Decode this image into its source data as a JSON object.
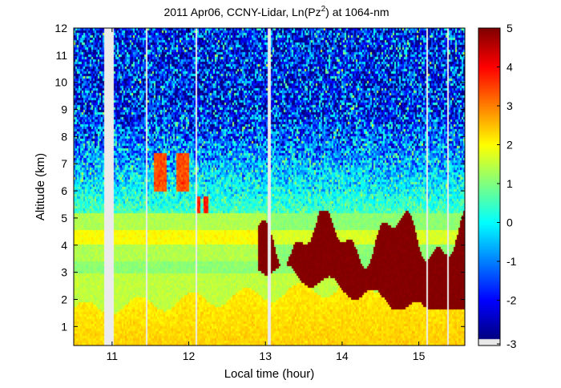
{
  "chart_data": {
    "type": "heatmap",
    "title_parts": {
      "prefix": "2011 Apr06, CCNY-Lidar, Ln(Pz",
      "superscript": "2",
      "suffix": ") at 1064-nm"
    },
    "xlabel": "Local time (hour)",
    "ylabel": "Altitude (km)",
    "xlim": [
      10.5,
      15.6
    ],
    "ylim": [
      0.3,
      12
    ],
    "x_ticks": [
      11,
      12,
      13,
      14,
      15
    ],
    "y_ticks": [
      1,
      2,
      3,
      4,
      5,
      6,
      7,
      8,
      9,
      10,
      11,
      12
    ],
    "colorbar": {
      "colormap": "jet",
      "range": [
        -3,
        5
      ],
      "ticks": [
        -3,
        -2,
        -1,
        0,
        1,
        2,
        3,
        4,
        5
      ],
      "no_data_color": "#e8e8e8"
    },
    "no_data_times": [
      10.95,
      11.45,
      12.1,
      13.05,
      15.1,
      15.38
    ],
    "no_data_block": [
      10.9,
      11.02
    ],
    "field_description": {
      "boundary_layer": {
        "top_km_start": 1.6,
        "top_km_end": 2.8,
        "value": 2.4
      },
      "aerosol_layer_km": [
        3.5,
        5.2
      ],
      "cloud_ice_patches": [
        {
          "t": [
            11.55,
            12.0
          ],
          "alt_km": [
            6.0,
            7.4
          ],
          "value": 3.4
        },
        {
          "t": [
            12.1,
            12.25
          ],
          "alt_km": [
            5.2,
            5.8
          ],
          "value": 3.8
        }
      ],
      "dense_cloud": {
        "t": [
          12.9,
          15.6
        ],
        "alt_km": [
          1.5,
          5.3
        ],
        "value": 5
      }
    }
  }
}
